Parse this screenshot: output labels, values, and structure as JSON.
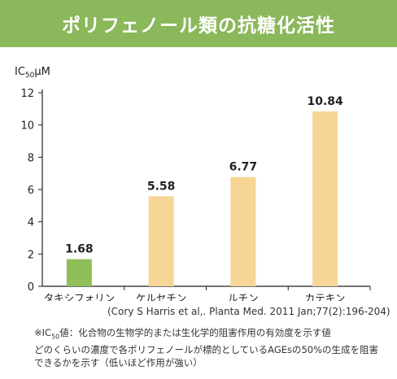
{
  "header": {
    "title": "ポリフェノール類の抗糖化活性"
  },
  "chart_data": {
    "type": "bar",
    "ylabel": "IC50 μM",
    "ylabel_main": "IC",
    "ylabel_sub": "50",
    "ylabel_unit": "μM",
    "ylim": [
      0,
      12
    ],
    "yticks": [
      "0",
      "2",
      "4",
      "6",
      "8",
      "10",
      "12"
    ],
    "grid": false,
    "categories": [
      "タキシフォリン",
      "ケルセチン",
      "ルチン",
      "カテキン"
    ],
    "values": [
      1.68,
      5.58,
      6.77,
      10.84
    ],
    "value_labels": [
      "1.68",
      "5.58",
      "6.77",
      "10.84"
    ],
    "colors": {
      "highlight": "#8fbf58",
      "bar": "#f6d596",
      "axis": "#222222"
    },
    "highlight_index": 0
  },
  "citation": "(Cory S Harris et al,. Planta Med. 2011 Jan;77(2):196-204)",
  "note": {
    "line1_prefix": "※IC",
    "line1_sub": "50",
    "line1_rest": "値：化合物の生物学的または生化学的阻害作用の有効度を示す値",
    "line2": "どのくらいの濃度で各ポリフェノールが標的としているAGEsの50%の生成を阻害",
    "line3": "できるかを示す（低いほど作用が強い）"
  }
}
